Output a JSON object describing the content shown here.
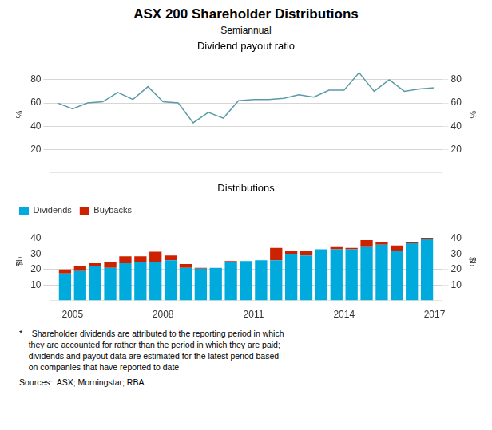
{
  "title": "ASX 200 Shareholder Distributions",
  "subtitle": "Semiannual",
  "annotations": [
    "*    Shareholder dividends are attributed to the reporting period in which",
    "    they are accounted for rather than the period in which they are paid;",
    "    dividends and payout data are estimated for the latest period based",
    "    on companies that have reported to date",
    "Sources:  ASX; Morningstar; RBA"
  ],
  "chart_data": [
    {
      "type": "line",
      "title": "Dividend payout ratio",
      "x": [
        2004.5,
        2005.0,
        2005.5,
        2006.0,
        2006.5,
        2007.0,
        2007.5,
        2008.0,
        2008.5,
        2009.0,
        2009.5,
        2010.0,
        2010.5,
        2011.0,
        2011.5,
        2012.0,
        2012.5,
        2013.0,
        2013.5,
        2014.0,
        2014.5,
        2015.0,
        2015.5,
        2016.0,
        2016.5,
        2017.0
      ],
      "values": [
        60,
        55,
        60,
        61,
        69,
        63,
        74,
        61,
        60,
        43,
        52,
        47,
        62,
        63,
        63,
        64,
        67,
        65,
        71,
        71,
        86,
        70,
        80,
        70,
        72,
        73
      ],
      "color": "#5b9aa8",
      "xlim": [
        2004.25,
        2017.25
      ],
      "xticks": [],
      "ylim": [
        0,
        100
      ],
      "yticks": [
        20,
        40,
        60,
        80
      ],
      "y2lim": [
        0,
        100
      ],
      "y2ticks": [
        20,
        40,
        60,
        80
      ],
      "ylabel": "%",
      "y2label": "%",
      "grid": true,
      "tick_labels": "y"
    },
    {
      "type": "bar",
      "title": "Distributions",
      "x": [
        2004.75,
        2005.25,
        2005.75,
        2006.25,
        2006.75,
        2007.25,
        2007.75,
        2008.25,
        2008.75,
        2009.25,
        2009.75,
        2010.25,
        2010.75,
        2011.25,
        2011.75,
        2012.25,
        2012.75,
        2013.25,
        2013.75,
        2014.25,
        2014.75,
        2015.25,
        2015.75,
        2016.25,
        2016.75
      ],
      "series": [
        {
          "name": "Dividends",
          "color": "#00aadd",
          "values": [
            17.5,
            19,
            22.5,
            21,
            24,
            24.5,
            25,
            26,
            21,
            20.5,
            21,
            25,
            25.5,
            26,
            26,
            30,
            29,
            33,
            33,
            33,
            35,
            36,
            32,
            37,
            40
          ]
        },
        {
          "name": "Buybacks",
          "color": "#cc2200",
          "values": [
            2.5,
            3.5,
            1.5,
            3.5,
            4.5,
            4,
            6.5,
            3,
            2.5,
            0.5,
            0,
            0.5,
            0,
            0,
            8,
            2,
            3,
            0,
            2,
            1,
            4,
            2,
            3.5,
            1,
            0.5
          ]
        }
      ],
      "stacked": true,
      "legend": "upper left",
      "xlim": [
        2004.25,
        2017.25
      ],
      "xticks": [
        2005,
        2008,
        2011,
        2014,
        2017
      ],
      "ylim": [
        0,
        50
      ],
      "yticks": [
        10,
        20,
        30,
        40
      ],
      "y2lim": [
        0,
        50
      ],
      "y2ticks": [
        10,
        20,
        30,
        40
      ],
      "ylabel": "$b",
      "y2label": "$b",
      "grid": true
    }
  ]
}
